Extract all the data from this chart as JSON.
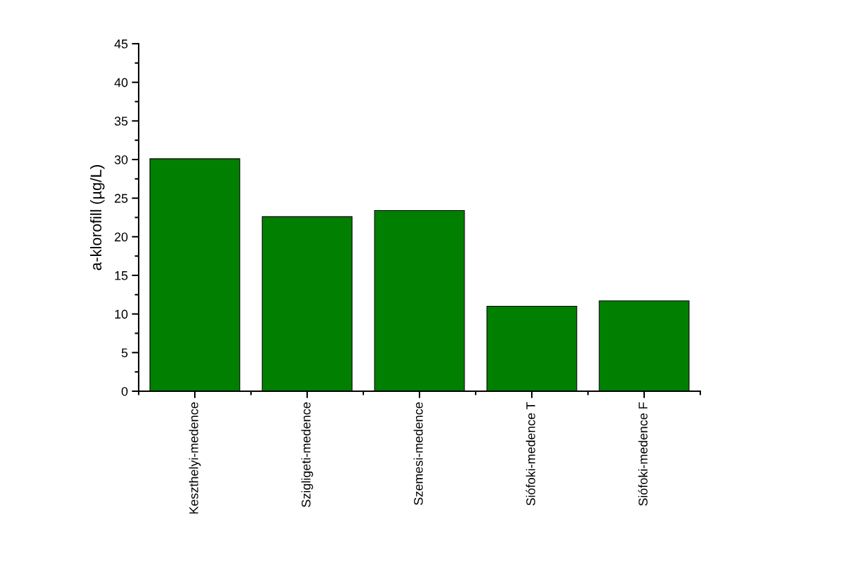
{
  "chart_data": {
    "type": "bar",
    "ylabel": "a-klorofill (µg/L)",
    "categories": [
      "Keszthelyi-medence",
      "Szigligeti-medence",
      "Szemesi-medence",
      "Siófoki-medence T",
      "Siófoki-medence F"
    ],
    "values": [
      30.1,
      22.6,
      23.4,
      11.0,
      11.7
    ],
    "color": "#007f00",
    "ylim": [
      0,
      45
    ],
    "yticks": [
      0,
      {
        "value": 2.5,
        "label": null
      },
      5,
      {
        "value": 7.5,
        "label": null
      },
      10,
      {
        "value": 12.5,
        "label": null
      },
      15,
      {
        "value": 17.5,
        "label": null
      },
      20,
      {
        "value": 22.5,
        "label": null
      },
      25,
      {
        "value": 27.5,
        "label": null
      },
      30,
      {
        "value": 32.5,
        "label": null
      },
      35,
      {
        "value": 37.5,
        "label": null
      },
      40,
      {
        "value": 42.5,
        "label": null
      },
      45
    ],
    "grid": false
  }
}
